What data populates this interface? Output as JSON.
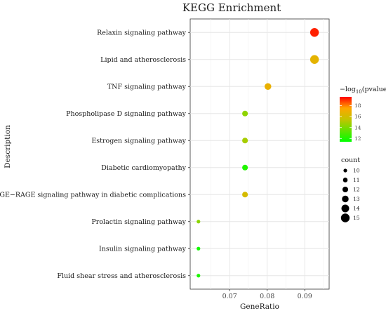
{
  "chart_data": {
    "type": "scatter",
    "title": "KEGG Enrichment",
    "xlabel": "GeneRatio",
    "ylabel": "Description",
    "xlim": [
      0.0595,
      0.0965
    ],
    "xticks": [
      0.07,
      0.08,
      0.09
    ],
    "xtick_labels": [
      "0.07",
      "0.08",
      "0.09"
    ],
    "grid": true,
    "categories": [
      "Relaxin signaling pathway",
      "Lipid and atherosclerosis",
      "TNF signaling pathway",
      "Phospholipase D signaling pathway",
      "Estrogen signaling pathway",
      "Diabetic cardiomyopathy",
      "AGE−RAGE signaling pathway in diabetic complications",
      "Prolactin signaling pathway",
      "Insulin signaling pathway",
      "Fluid shear stress and atherosclerosis"
    ],
    "points": [
      {
        "description": "Relaxin signaling pathway",
        "gene_ratio": 0.0926,
        "neg_log10_pvalue": 19.2,
        "count": 15
      },
      {
        "description": "Lipid and atherosclerosis",
        "gene_ratio": 0.0926,
        "neg_log10_pvalue": 16.6,
        "count": 15
      },
      {
        "description": "TNF signaling pathway",
        "gene_ratio": 0.0802,
        "neg_log10_pvalue": 16.8,
        "count": 13
      },
      {
        "description": "Phospholipase D signaling pathway",
        "gene_ratio": 0.0741,
        "neg_log10_pvalue": 14.4,
        "count": 12
      },
      {
        "description": "Estrogen signaling pathway",
        "gene_ratio": 0.0741,
        "neg_log10_pvalue": 14.9,
        "count": 12
      },
      {
        "description": "Diabetic cardiomyopathy",
        "gene_ratio": 0.0741,
        "neg_log10_pvalue": 12.1,
        "count": 12
      },
      {
        "description": "AGE−RAGE signaling pathway in diabetic complications",
        "gene_ratio": 0.0741,
        "neg_log10_pvalue": 16.1,
        "count": 12
      },
      {
        "description": "Prolactin signaling pathway",
        "gene_ratio": 0.0617,
        "neg_log10_pvalue": 14.3,
        "count": 10
      },
      {
        "description": "Insulin signaling pathway",
        "gene_ratio": 0.0617,
        "neg_log10_pvalue": 11.8,
        "count": 10
      },
      {
        "description": "Fluid shear stress and atherosclerosis",
        "gene_ratio": 0.0617,
        "neg_log10_pvalue": 12.0,
        "count": 10
      }
    ],
    "color_legend": {
      "title_prefix": "−log",
      "title_subscript": "10",
      "title_suffix": "(pvalue)",
      "range": [
        11.4,
        19.6
      ],
      "ticks": [
        12,
        14,
        16,
        18
      ],
      "tick_labels": [
        "12",
        "14",
        "16",
        "18"
      ],
      "colors": [
        "#00ff00",
        "#ffa500",
        "#ff0000"
      ],
      "placement": "right"
    },
    "size_legend": {
      "title": "count",
      "values": [
        10,
        11,
        12,
        13,
        14,
        15
      ],
      "labels": [
        "10",
        "11",
        "12",
        "13",
        "14",
        "15"
      ],
      "placement": "right"
    }
  }
}
